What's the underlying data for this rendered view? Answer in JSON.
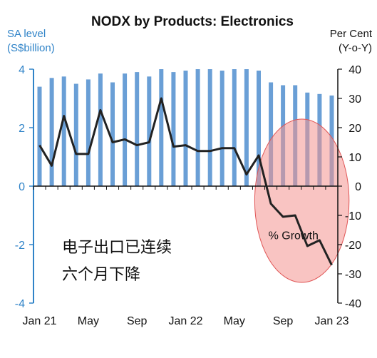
{
  "chart_data": {
    "type": "bar+line",
    "title": "NODX by Products: Electronics",
    "ylabel_left": [
      "SA level",
      "(S$billion)"
    ],
    "ylabel_right": [
      "Per Cent",
      "(Y-o-Y)"
    ],
    "ylim_left": [
      -4,
      4
    ],
    "ylim_right": [
      -40,
      40
    ],
    "yticks_left": [
      "4",
      "2",
      "0",
      "-2",
      "-4"
    ],
    "yticks_right": [
      "40",
      "30",
      "20",
      "10",
      "0",
      "-10",
      "-20",
      "-30",
      "-40"
    ],
    "xtick_labels": [
      "Jan 21",
      "May",
      "Sep",
      "Jan 22",
      "May",
      "Sep",
      "Jan 23"
    ],
    "xtick_index": [
      0,
      4,
      8,
      12,
      16,
      20,
      24
    ],
    "months": 25,
    "bars": {
      "axis": "left",
      "color": "#6a9fd6",
      "values": [
        3.4,
        3.7,
        3.75,
        3.5,
        3.65,
        3.85,
        3.55,
        3.85,
        3.9,
        3.75,
        4.0,
        3.9,
        3.95,
        4.0,
        4.0,
        3.95,
        4.0,
        4.0,
        3.95,
        3.55,
        3.45,
        3.45,
        3.2,
        3.15,
        3.1
      ]
    },
    "line": {
      "axis": "right",
      "name": "% Growth",
      "color": "#222222",
      "values": [
        14,
        7,
        24,
        11,
        11,
        26,
        15,
        16,
        14,
        15,
        30,
        13.5,
        14,
        12,
        12,
        13,
        13,
        4,
        10.5,
        -6,
        -10.5,
        -10,
        -20.5,
        -18.5,
        -27
      ]
    },
    "annotations": [
      "电子出口已连续",
      "六个月下降"
    ],
    "highlight_color": "#f4948f"
  }
}
